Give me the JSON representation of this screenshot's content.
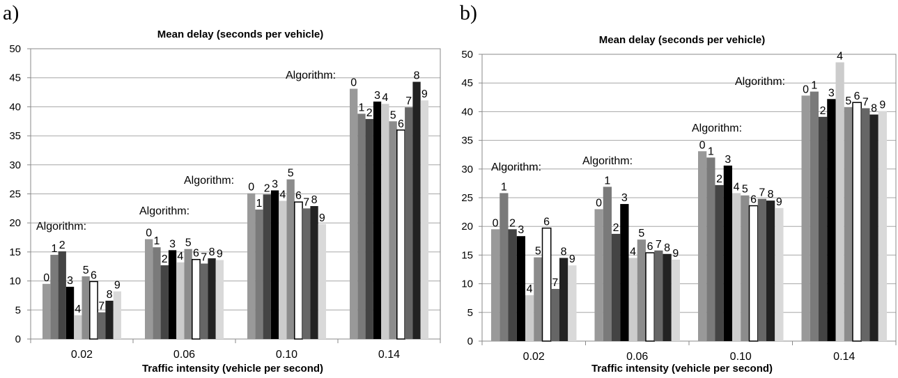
{
  "panels": [
    {
      "label": "a)"
    },
    {
      "label": "b)"
    }
  ],
  "colors": {
    "algorithms": [
      "#999999",
      "#7a7a7a",
      "#444444",
      "#000000",
      "#cccccc",
      "#8c8c8c",
      "#ffffff",
      "#666666",
      "#222222",
      "#d9d9d9"
    ],
    "grid": "#a6a6a6",
    "bar_stroke": "#000000"
  },
  "chart_data": [
    {
      "type": "bar",
      "title": "Mean delay (seconds per vehicle)",
      "xlabel": "Traffic intensity (vehicle per second)",
      "ylabel": "",
      "ylim": [
        0,
        50
      ],
      "yticks": [
        "0",
        "5",
        "10",
        "15",
        "20",
        "25",
        "30",
        "35",
        "40",
        "45",
        "50"
      ],
      "categories": [
        "0.02",
        "0.06",
        "0.10",
        "0.14"
      ],
      "annotation": "Algorithm:",
      "series": [
        {
          "name": "0",
          "values": [
            9.5,
            17.2,
            25.1,
            43.1
          ]
        },
        {
          "name": "1",
          "values": [
            14.5,
            15.8,
            22.3,
            38.8
          ]
        },
        {
          "name": "2",
          "values": [
            15.1,
            12.7,
            24.9,
            37.9
          ]
        },
        {
          "name": "3",
          "values": [
            9.0,
            15.3,
            25.6,
            40.9
          ]
        },
        {
          "name": "4",
          "values": [
            4.1,
            13.2,
            23.8,
            40.5
          ]
        },
        {
          "name": "5",
          "values": [
            10.8,
            15.5,
            27.5,
            37.5
          ]
        },
        {
          "name": "6",
          "values": [
            9.9,
            13.7,
            23.6,
            36.0
          ]
        },
        {
          "name": "7",
          "values": [
            4.6,
            13.0,
            22.5,
            39.9
          ]
        },
        {
          "name": "8",
          "values": [
            6.6,
            13.9,
            22.9,
            44.3
          ]
        },
        {
          "name": "9",
          "values": [
            8.2,
            13.6,
            19.8,
            41.1
          ]
        }
      ]
    },
    {
      "type": "bar",
      "title": "Mean delay (seconds per vehicle)",
      "xlabel": "Traffic intensity (vehicle per second)",
      "ylabel": "",
      "ylim": [
        0,
        50
      ],
      "yticks": [
        "0",
        "5",
        "10",
        "15",
        "20",
        "25",
        "30",
        "35",
        "40",
        "45",
        "50"
      ],
      "categories": [
        "0.02",
        "0.06",
        "0.10",
        "0.14"
      ],
      "annotation": "Algorithm:",
      "series": [
        {
          "name": "0",
          "values": [
            19.5,
            23.0,
            33.1,
            42.8
          ]
        },
        {
          "name": "1",
          "values": [
            25.8,
            26.9,
            32.0,
            43.5
          ]
        },
        {
          "name": "2",
          "values": [
            19.5,
            18.7,
            27.2,
            39.1
          ]
        },
        {
          "name": "3",
          "values": [
            18.3,
            23.9,
            30.6,
            42.2
          ]
        },
        {
          "name": "4",
          "values": [
            8.0,
            14.5,
            25.8,
            48.6
          ]
        },
        {
          "name": "5",
          "values": [
            14.6,
            17.7,
            25.4,
            40.8
          ]
        },
        {
          "name": "6",
          "values": [
            19.7,
            15.4,
            23.6,
            41.6
          ]
        },
        {
          "name": "7",
          "values": [
            9.1,
            15.8,
            24.8,
            40.6
          ]
        },
        {
          "name": "8",
          "values": [
            14.5,
            15.2,
            24.5,
            39.5
          ]
        },
        {
          "name": "9",
          "values": [
            13.2,
            14.2,
            23.2,
            40.1
          ]
        }
      ]
    }
  ]
}
